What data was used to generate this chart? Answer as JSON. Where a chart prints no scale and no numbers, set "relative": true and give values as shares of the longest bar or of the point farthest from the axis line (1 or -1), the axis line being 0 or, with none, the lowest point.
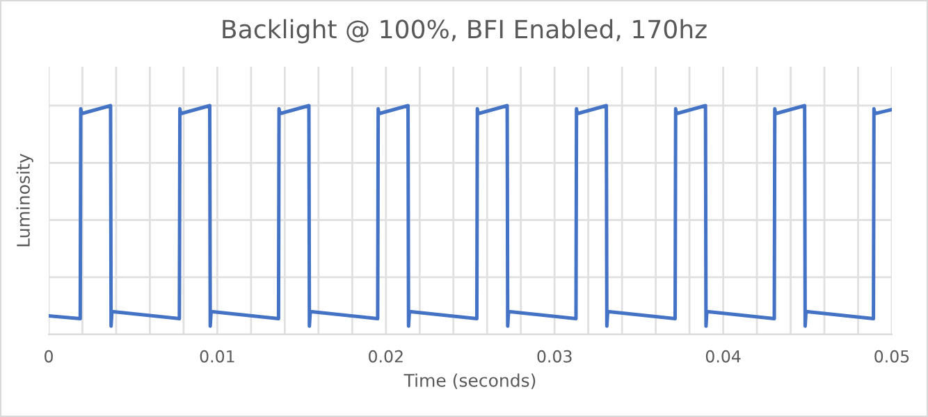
{
  "chart_data": {
    "type": "line",
    "title": "Backlight @ 100%, BFI Enabled, 170hz",
    "xlabel": "Time (seconds)",
    "ylabel": "Luminosity",
    "relative": true,
    "grid": true,
    "legend": false,
    "marker": "none",
    "line_style": "solid",
    "tick_labels": "x",
    "xlim": [
      0,
      0.05
    ],
    "xticks": [
      0,
      {
        "value": 0.002,
        "label": null
      },
      {
        "value": 0.004,
        "label": null
      },
      {
        "value": 0.006,
        "label": null
      },
      {
        "value": 0.008,
        "label": null
      },
      0.01,
      {
        "value": 0.012,
        "label": null
      },
      {
        "value": 0.014,
        "label": null
      },
      {
        "value": 0.016,
        "label": null
      },
      {
        "value": 0.018,
        "label": null
      },
      0.02,
      {
        "value": 0.022,
        "label": null
      },
      {
        "value": 0.024,
        "label": null
      },
      {
        "value": 0.026,
        "label": null
      },
      {
        "value": 0.028,
        "label": null
      },
      0.03,
      {
        "value": 0.032,
        "label": null
      },
      {
        "value": 0.034,
        "label": null
      },
      {
        "value": 0.036,
        "label": null
      },
      {
        "value": 0.038,
        "label": null
      },
      0.04,
      {
        "value": 0.042,
        "label": null
      },
      {
        "value": 0.044,
        "label": null
      },
      {
        "value": 0.046,
        "label": null
      },
      {
        "value": 0.048,
        "label": null
      },
      0.05
    ],
    "series": [
      {
        "color": "#4472c4",
        "x": [
          0,
          0.00187,
          0.0019,
          0.00195,
          0.00367,
          0.0037,
          0.00375,
          0.00775,
          0.00778,
          0.00783,
          0.00955,
          0.00958,
          0.00963,
          0.01363,
          0.01366,
          0.01371,
          0.01543,
          0.01546,
          0.01551,
          0.01951,
          0.01954,
          0.01959,
          0.02131,
          0.02134,
          0.02139,
          0.02539,
          0.02542,
          0.02547,
          0.02719,
          0.02722,
          0.02727,
          0.03127,
          0.0313,
          0.03135,
          0.03307,
          0.0331,
          0.03315,
          0.03715,
          0.03718,
          0.03723,
          0.03895,
          0.03898,
          0.03903,
          0.04303,
          0.04306,
          0.04311,
          0.04483,
          0.04486,
          0.04491,
          0.04891,
          0.04894,
          0.04899,
          0.05
        ],
        "values": [
          0.081,
          0.069,
          0.986,
          0.965,
          1,
          0.036,
          0.1,
          0.069,
          0.986,
          0.965,
          1,
          0.036,
          0.1,
          0.069,
          0.986,
          0.965,
          1,
          0.036,
          0.1,
          0.069,
          0.986,
          0.965,
          1,
          0.036,
          0.1,
          0.069,
          0.986,
          0.965,
          1,
          0.036,
          0.1,
          0.069,
          0.986,
          0.965,
          1,
          0.036,
          0.1,
          0.069,
          0.986,
          0.965,
          1,
          0.036,
          0.1,
          0.069,
          0.986,
          0.965,
          1,
          0.036,
          0.1,
          0.069,
          0.986,
          0.965,
          0.983
        ]
      }
    ]
  }
}
